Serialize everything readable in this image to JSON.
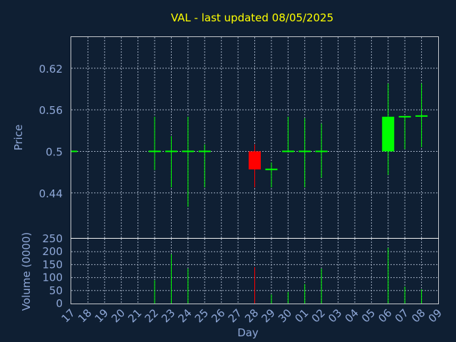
{
  "chart_data": {
    "type": "candlestick",
    "title": "VAL - last updated 08/05/2025",
    "price_panel": {
      "ylabel": "Price",
      "ylim": [
        0.375,
        0.665
      ],
      "yticks": [
        "0.44",
        "0.5",
        "0.56",
        "0.62"
      ],
      "grid": true
    },
    "volume_panel": {
      "ylabel": "Volume (0000)",
      "ylim": [
        0,
        250
      ],
      "yticks": [
        "0",
        "50",
        "100",
        "150",
        "200",
        "250"
      ],
      "grid": true
    },
    "xlabel": "Day",
    "x_ticks": [
      "17",
      "18",
      "19",
      "20",
      "21",
      "22",
      "23",
      "24",
      "25",
      "26",
      "27",
      "28",
      "29",
      "30",
      "01",
      "02",
      "03",
      "04",
      "05",
      "06",
      "07",
      "08",
      "09"
    ],
    "colors": {
      "up": "#00ff00",
      "down": "#ff0000",
      "title": "#ffff00",
      "axis_text": "#8fa8d8",
      "background": "#0f1f33"
    },
    "candles": [
      {
        "day": "17",
        "open": 0.5,
        "high": 0.5,
        "low": 0.5,
        "close": 0.5,
        "volume": 0
      },
      {
        "day": "22",
        "open": 0.5,
        "high": 0.55,
        "low": 0.473,
        "close": 0.5,
        "volume": 90
      },
      {
        "day": "23",
        "open": 0.5,
        "high": 0.522,
        "low": 0.448,
        "close": 0.5,
        "volume": 190
      },
      {
        "day": "24",
        "open": 0.5,
        "high": 0.55,
        "low": 0.42,
        "close": 0.5,
        "volume": 135
      },
      {
        "day": "25",
        "open": 0.5,
        "high": 0.51,
        "low": 0.448,
        "close": 0.5,
        "volume": 0
      },
      {
        "day": "28",
        "open": 0.5,
        "high": 0.51,
        "low": 0.448,
        "close": 0.474,
        "volume": 140
      },
      {
        "day": "29",
        "open": 0.474,
        "high": 0.484,
        "low": 0.448,
        "close": 0.474,
        "volume": 35
      },
      {
        "day": "30",
        "open": 0.5,
        "high": 0.55,
        "low": 0.5,
        "close": 0.5,
        "volume": 45
      },
      {
        "day": "01",
        "open": 0.5,
        "high": 0.548,
        "low": 0.448,
        "close": 0.5,
        "volume": 75
      },
      {
        "day": "02",
        "open": 0.5,
        "high": 0.54,
        "low": 0.462,
        "close": 0.5,
        "volume": 135
      },
      {
        "day": "06",
        "open": 0.5,
        "high": 0.598,
        "low": 0.466,
        "close": 0.55,
        "volume": 215
      },
      {
        "day": "07",
        "open": 0.55,
        "high": 0.55,
        "low": 0.503,
        "close": 0.55,
        "volume": 65
      },
      {
        "day": "08",
        "open": 0.55,
        "high": 0.598,
        "low": 0.506,
        "close": 0.551,
        "volume": 55
      }
    ]
  }
}
